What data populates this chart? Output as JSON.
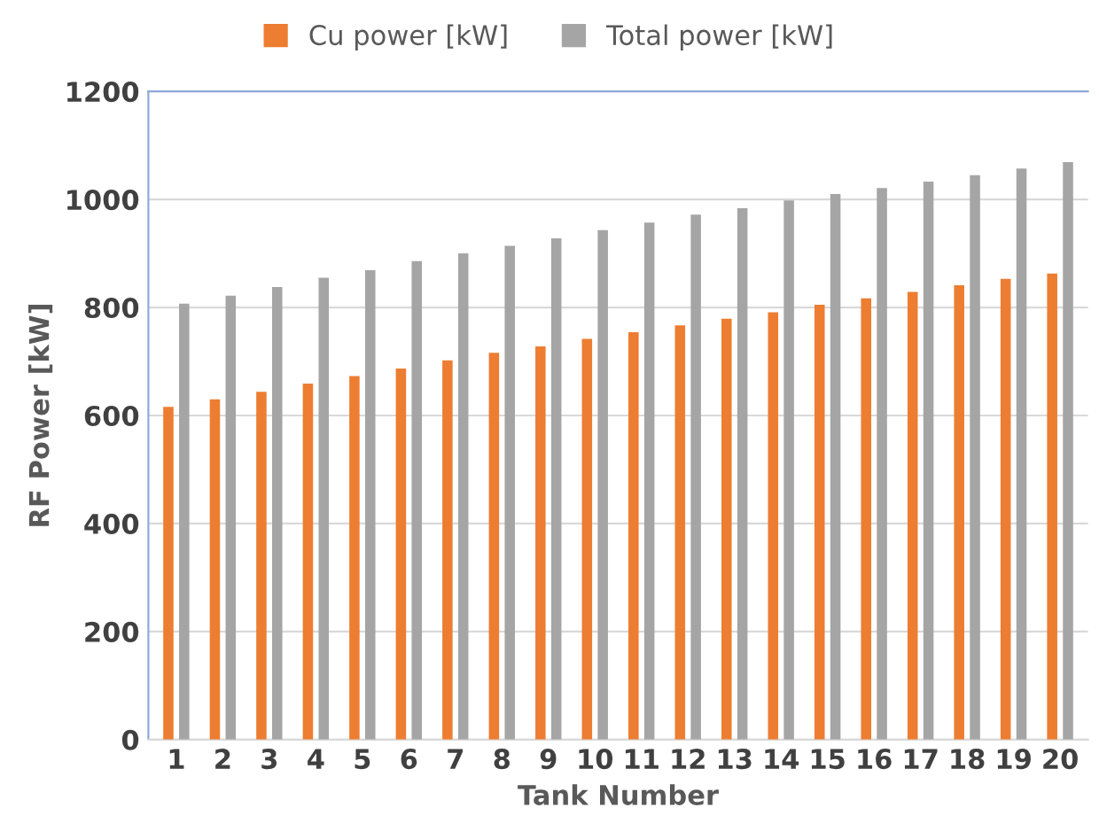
{
  "chart_data": {
    "type": "bar",
    "xlabel": "Tank Number",
    "ylabel": "RF Power [kW]",
    "categories": [
      "1",
      "2",
      "3",
      "4",
      "5",
      "6",
      "7",
      "8",
      "9",
      "10",
      "11",
      "12",
      "13",
      "14",
      "15",
      "16",
      "17",
      "18",
      "19",
      "20"
    ],
    "series": [
      {
        "name": "Cu power [kW]",
        "color": "#ed7d31",
        "values": [
          616,
          630,
          644,
          659,
          673,
          687,
          702,
          716,
          728,
          742,
          754,
          767,
          779,
          791,
          805,
          817,
          829,
          841,
          853,
          863
        ]
      },
      {
        "name": "Total power [kW]",
        "color": "#a5a5a5",
        "values": [
          807,
          822,
          838,
          855,
          869,
          886,
          900,
          914,
          928,
          943,
          957,
          972,
          984,
          998,
          1010,
          1021,
          1033,
          1045,
          1057,
          1069
        ]
      }
    ],
    "ylim": [
      0,
      1200
    ],
    "yticks": [
      0,
      200,
      400,
      600,
      800,
      1000,
      1200
    ],
    "grid": "y",
    "legend": "top"
  }
}
